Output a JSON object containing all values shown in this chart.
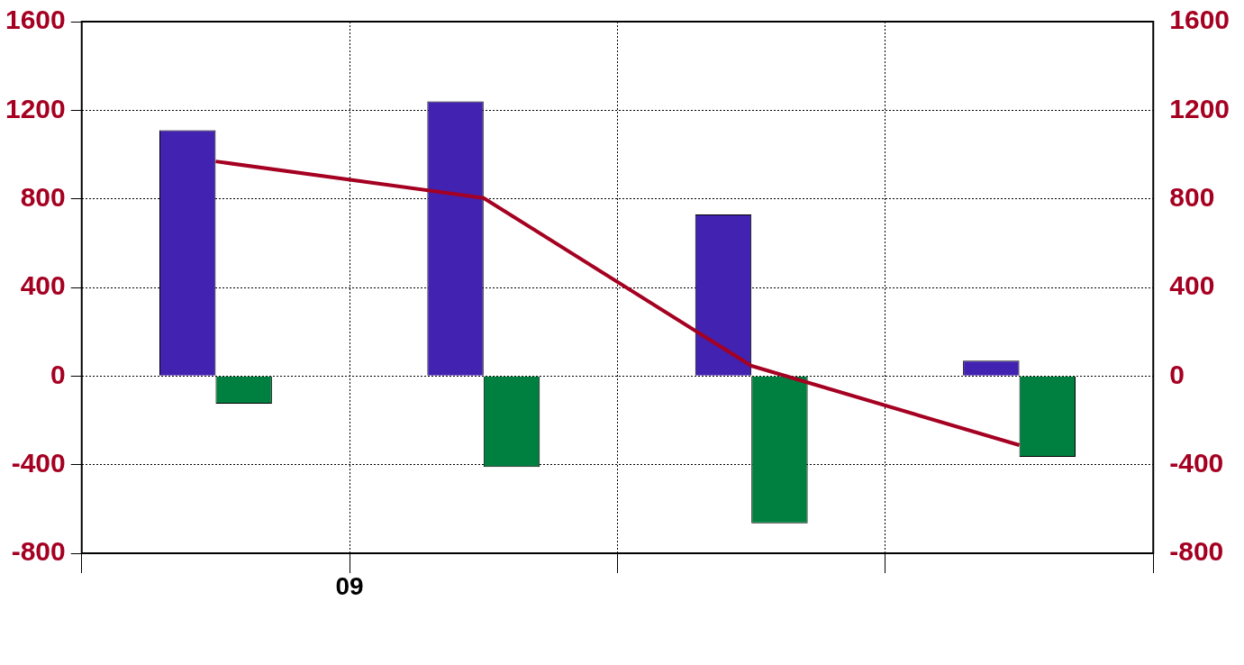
{
  "chart_data": {
    "type": "bar",
    "categories": [
      null,
      null,
      null,
      null
    ],
    "series": [
      {
        "color": "#4222b0",
        "values": [
          1110,
          1240,
          730,
          70
        ]
      },
      {
        "color": "#008040",
        "values": [
          -125,
          -410,
          -665,
          -365
        ]
      },
      {
        "type": "line",
        "color": "#a50021",
        "values": [
          969,
          804,
          46,
          -312
        ]
      }
    ],
    "ylim": [
      -800,
      1600
    ],
    "yticks": [
      -800,
      -400,
      0,
      400,
      800,
      1200,
      1600
    ],
    "y2lim": [
      -800,
      1600
    ],
    "y2ticks": [
      -800,
      -400,
      0,
      400,
      800,
      1200,
      1600
    ],
    "annotations": [
      "09"
    ],
    "grid": true,
    "legend": false
  }
}
